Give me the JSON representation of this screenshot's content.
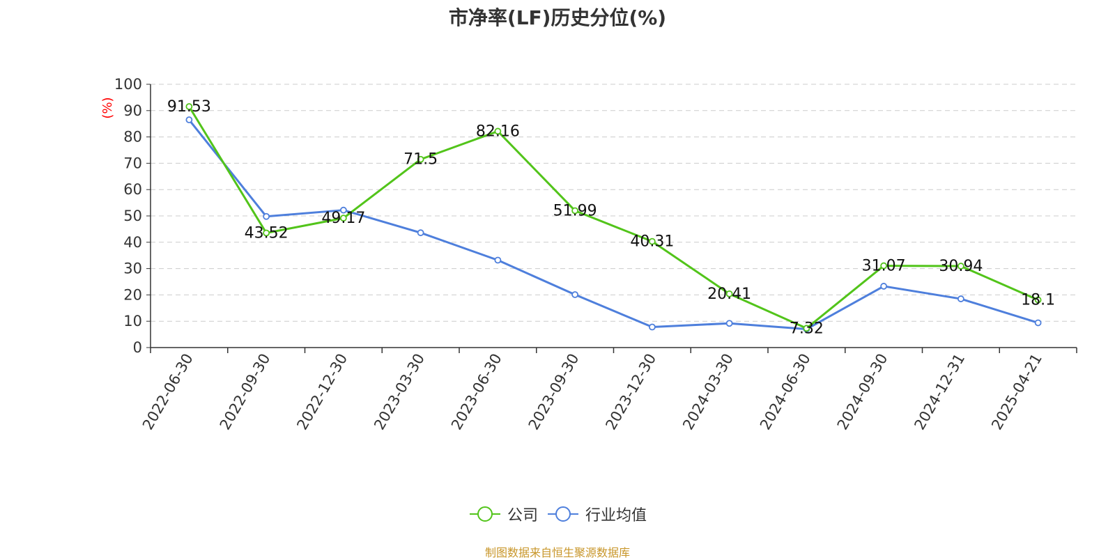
{
  "chart_data": {
    "type": "line",
    "title": "市净率(LF)历史分位(%)",
    "ylabel": "(%)",
    "xlabel": "",
    "ylim": [
      0,
      100
    ],
    "yticks": [
      0,
      10,
      20,
      30,
      40,
      50,
      60,
      70,
      80,
      90,
      100
    ],
    "grid": true,
    "legend_position": "bottom",
    "categories": [
      "2022-06-30",
      "2022-09-30",
      "2022-12-30",
      "2023-03-30",
      "2023-06-30",
      "2023-09-30",
      "2023-12-30",
      "2024-03-30",
      "2024-06-30",
      "2024-09-30",
      "2024-12-31",
      "2025-04-21"
    ],
    "series": [
      {
        "name": "公司",
        "color": "#52c41a",
        "show_labels": true,
        "values": [
          91.53,
          43.52,
          49.17,
          71.5,
          82.16,
          51.99,
          40.31,
          20.41,
          7.32,
          31.07,
          30.94,
          18.1
        ]
      },
      {
        "name": "行业均值",
        "color": "#4e7fdc",
        "show_labels": false,
        "values": [
          86.5,
          49.8,
          52.2,
          43.6,
          33.2,
          20.1,
          7.8,
          9.2,
          7.0,
          23.3,
          18.5,
          9.4
        ]
      }
    ]
  },
  "legend": {
    "items": [
      "公司",
      "行业均值"
    ]
  },
  "source_note": "制图数据来自恒生聚源数据库",
  "colors": {
    "axis": "#333333",
    "grid": "#cccccc",
    "ylabel": "#ff0000",
    "source": "#c8962a"
  }
}
